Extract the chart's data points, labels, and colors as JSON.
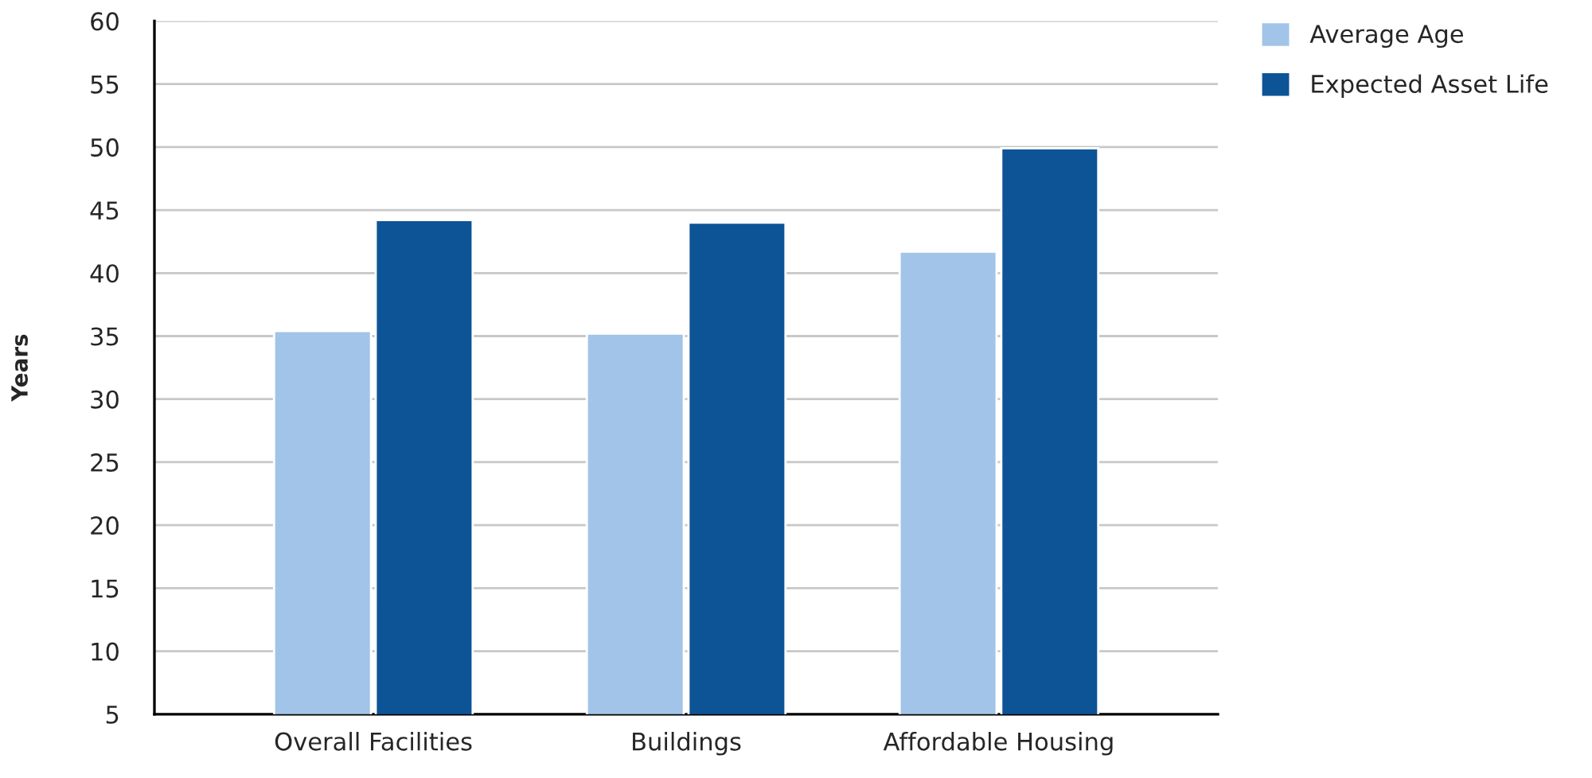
{
  "chart_data": {
    "type": "bar",
    "ylabel": "Years",
    "categories": [
      "Overall Facilities",
      "Buildings",
      "Affordable Housing"
    ],
    "series": [
      {
        "name": "Average Age",
        "color": "#a2c4e8",
        "values": [
          35.4,
          35.2,
          41.7
        ]
      },
      {
        "name": "Expected Asset Life",
        "color": "#0d5496",
        "values": [
          44.2,
          44.0,
          49.9
        ]
      }
    ],
    "ylim": [
      5,
      60
    ],
    "yticks": [
      5,
      10,
      15,
      20,
      25,
      30,
      35,
      40,
      45,
      50,
      55,
      60
    ],
    "grid": "y",
    "legend": "top right"
  }
}
